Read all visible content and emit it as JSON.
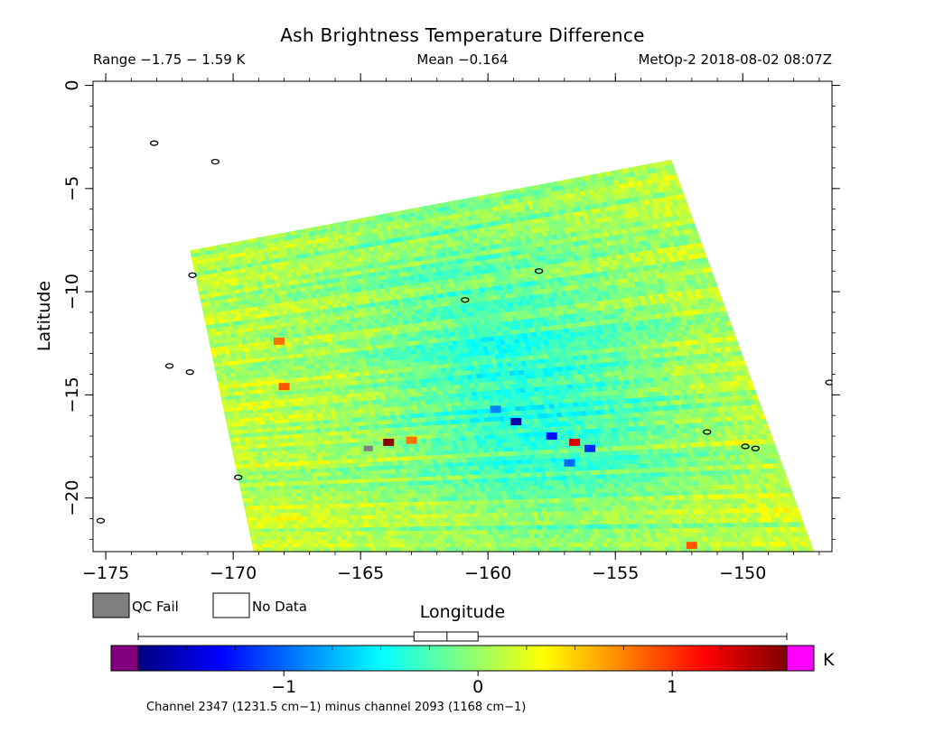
{
  "chart_data": {
    "type": "heatmap",
    "title": "Ash Brightness Temperature Difference",
    "subtitle_range": "Range −1.75 − 1.59 K",
    "subtitle_mean": "Mean −0.164",
    "subtitle_source": "MetOp-2 2018-08-02 08:07Z",
    "xlabel": "Longitude",
    "ylabel": "Latitude",
    "xlim": [
      -175.5,
      -146.5
    ],
    "ylim": [
      -22.6,
      0.2
    ],
    "x_ticks": [
      -175,
      -170,
      -165,
      -160,
      -155,
      -150
    ],
    "x_tick_labels": [
      "−175",
      "−170",
      "−165",
      "−160",
      "−155",
      "−150"
    ],
    "y_ticks": [
      0,
      -5,
      -10,
      -15,
      -20
    ],
    "y_tick_labels": [
      "0",
      "−5",
      "−10",
      "−15",
      "−20"
    ],
    "swath_corners": [
      [
        -171.7,
        -8.0
      ],
      [
        -152.8,
        -3.6
      ],
      [
        -147.2,
        -22.6
      ],
      [
        -169.2,
        -22.6
      ]
    ],
    "value_range": [
      -1.75,
      1.59
    ],
    "mean": -0.164,
    "hotspots": [
      {
        "lon": -158.9,
        "lat": -16.3,
        "value": -1.6
      },
      {
        "lon": -157.5,
        "lat": -17.0,
        "value": -1.3
      },
      {
        "lon": -156.0,
        "lat": -17.6,
        "value": -1.2
      },
      {
        "lon": -156.8,
        "lat": -18.3,
        "value": -1.0
      },
      {
        "lon": -159.7,
        "lat": -15.7,
        "value": -0.9
      },
      {
        "lon": -163.9,
        "lat": -17.3,
        "value": 1.55
      },
      {
        "lon": -168.0,
        "lat": -14.6,
        "value": 0.9
      },
      {
        "lon": -168.2,
        "lat": -12.4,
        "value": 0.8
      },
      {
        "lon": -156.6,
        "lat": -17.3,
        "value": 1.3
      },
      {
        "lon": -163.0,
        "lat": -17.2,
        "value": 0.8
      },
      {
        "lon": -152.0,
        "lat": -22.3,
        "value": 0.9
      }
    ],
    "qc_fail_pixels": [
      {
        "lon": -164.7,
        "lat": -17.6
      }
    ],
    "coastlines": [
      {
        "lon": -173.1,
        "lat": -2.8
      },
      {
        "lon": -170.7,
        "lat": -3.7
      },
      {
        "lon": -172.5,
        "lat": -13.6
      },
      {
        "lon": -171.7,
        "lat": -13.9
      },
      {
        "lon": -169.8,
        "lat": -19.0
      },
      {
        "lon": -175.2,
        "lat": -21.1
      },
      {
        "lon": -171.6,
        "lat": -9.2
      },
      {
        "lon": -158.0,
        "lat": -9.0
      },
      {
        "lon": -160.9,
        "lat": -10.4
      },
      {
        "lon": -151.4,
        "lat": -16.8
      },
      {
        "lon": -149.5,
        "lat": -17.6
      },
      {
        "lon": -149.9,
        "lat": -17.5
      },
      {
        "lon": -146.6,
        "lat": -14.4
      }
    ],
    "colorbar": {
      "stops": [
        "#00007f",
        "#0000ff",
        "#0080ff",
        "#00ffff",
        "#80ff80",
        "#ffff00",
        "#ff8000",
        "#ff0000",
        "#7f0000"
      ],
      "under_color": "#800080",
      "over_color": "#ff00ff",
      "range": [
        -1.75,
        1.59
      ],
      "ticks": [
        -1,
        0,
        1
      ],
      "tick_labels": [
        "−1",
        "0",
        "1"
      ],
      "unit": "K",
      "box_quartiles": [
        -0.33,
        -0.16,
        0.0
      ],
      "whiskers": [
        -1.75,
        1.59
      ]
    },
    "colors": {
      "qc_fail": "#7f7f7f",
      "no_data": "#ffffff"
    },
    "grid": false
  },
  "legend": {
    "qc_fail_label": "QC Fail",
    "no_data_label": "No Data"
  },
  "footer": "Channel 2347 (1231.5 cm−1) minus channel 2093 (1168 cm−1)"
}
